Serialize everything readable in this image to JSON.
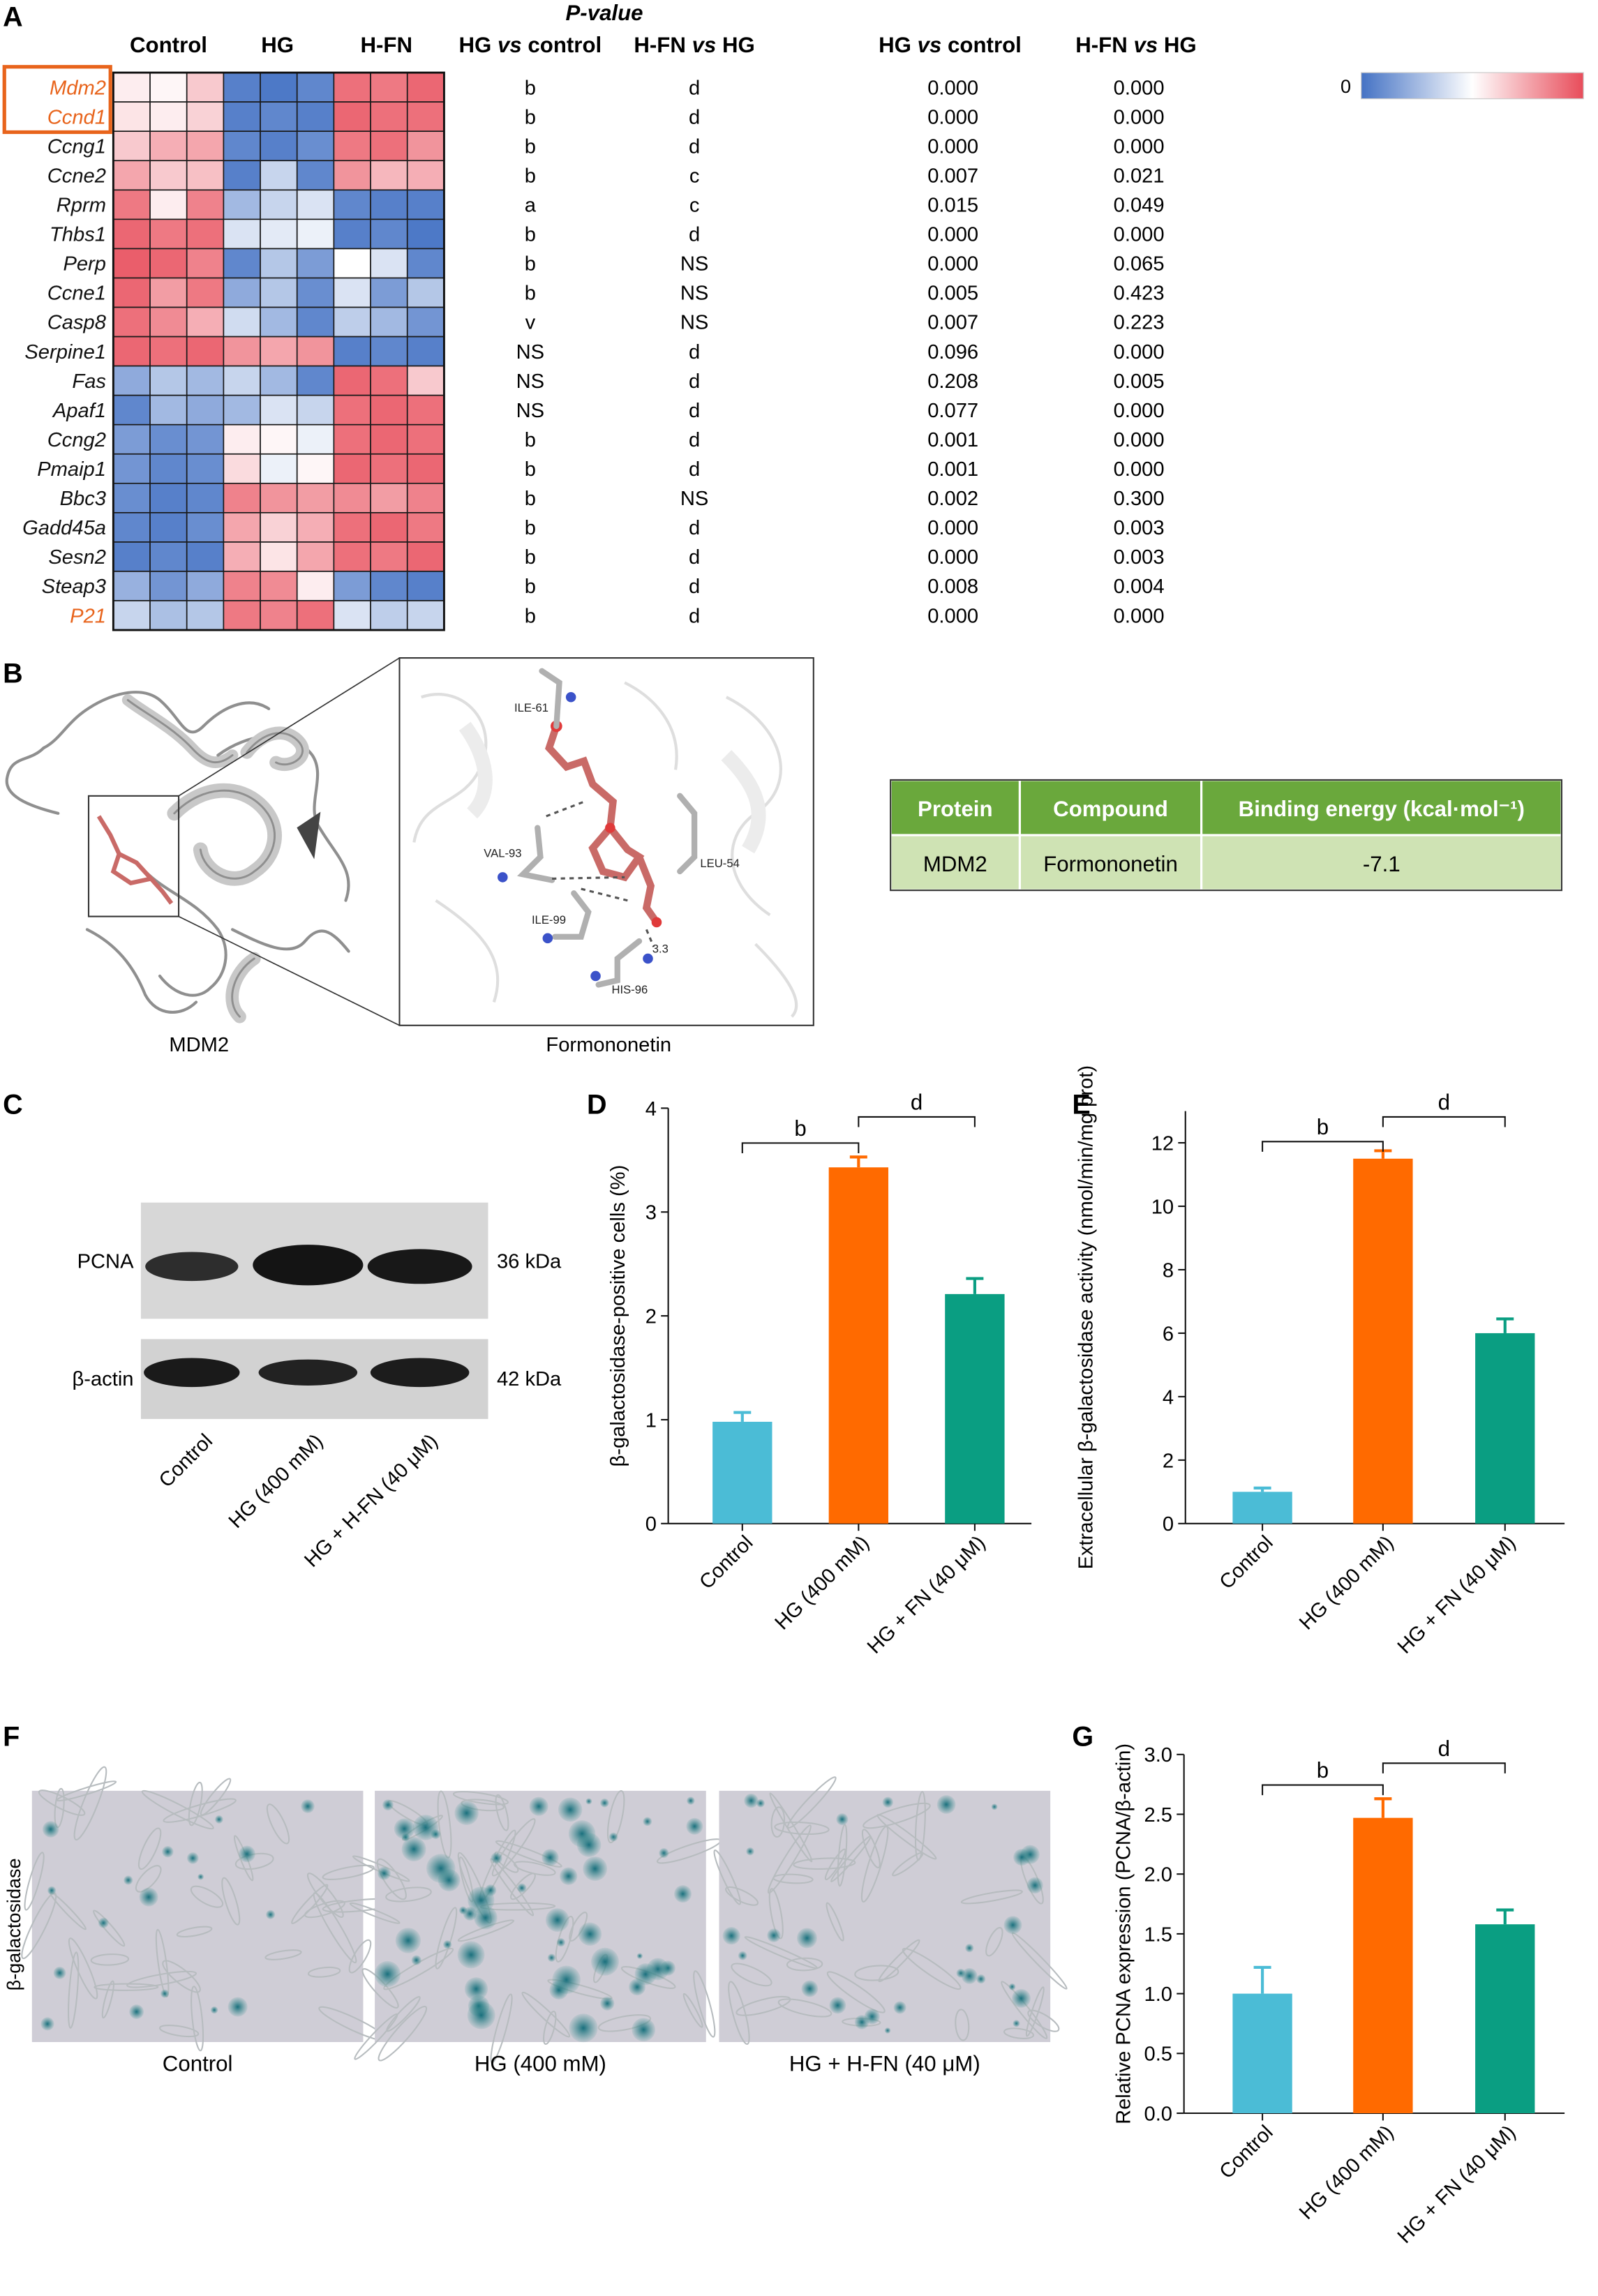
{
  "panels": {
    "a": "A",
    "b": "B",
    "c": "C",
    "d": "D",
    "e": "E",
    "f": "F",
    "g": "G"
  },
  "heatmap": {
    "pvalue_title": "P-value",
    "group_headers": [
      "Control",
      "HG",
      "H-FN"
    ],
    "letter_headers": [
      "HG vs control",
      "H-FN vs HG"
    ],
    "pvalue_headers": [
      "HG vs control",
      "H-FN vs HG"
    ],
    "scale_label": "0",
    "highlight_color": "#e8641c",
    "colors": {
      "low": "#4472c4",
      "mid": "#ffffff",
      "high": "#e84c5a"
    },
    "genes": [
      {
        "name": "Mdm2",
        "highlight": true,
        "cells": [
          0.1,
          0.05,
          0.3,
          -0.9,
          -0.95,
          -0.85,
          0.8,
          0.75,
          0.85
        ],
        "sig1": "b",
        "sig2": "d",
        "p1": "0.000",
        "p2": "0.000"
      },
      {
        "name": "Ccnd1",
        "highlight": true,
        "cells": [
          0.15,
          0.1,
          0.25,
          -0.9,
          -0.85,
          -0.9,
          0.85,
          0.8,
          0.8
        ],
        "sig1": "b",
        "sig2": "d",
        "p1": "0.000",
        "p2": "0.000"
      },
      {
        "name": "Ccng1",
        "highlight": false,
        "cells": [
          0.3,
          0.45,
          0.5,
          -0.85,
          -0.9,
          -0.8,
          0.75,
          0.8,
          0.6
        ],
        "sig1": "b",
        "sig2": "d",
        "p1": "0.000",
        "p2": "0.000"
      },
      {
        "name": "Ccne2",
        "highlight": false,
        "cells": [
          0.5,
          0.3,
          0.35,
          -0.9,
          -0.3,
          -0.85,
          0.6,
          0.4,
          0.45
        ],
        "sig1": "b",
        "sig2": "c",
        "p1": "0.007",
        "p2": "0.021"
      },
      {
        "name": "Rprm",
        "highlight": false,
        "cells": [
          0.75,
          0.1,
          0.7,
          -0.5,
          -0.3,
          -0.2,
          -0.85,
          -0.9,
          -0.9
        ],
        "sig1": "a",
        "sig2": "c",
        "p1": "0.015",
        "p2": "0.049"
      },
      {
        "name": "Thbs1",
        "highlight": false,
        "cells": [
          0.85,
          0.75,
          0.8,
          -0.2,
          -0.15,
          -0.1,
          -0.9,
          -0.85,
          -0.95
        ],
        "sig1": "b",
        "sig2": "d",
        "p1": "0.000",
        "p2": "0.000"
      },
      {
        "name": "Perp",
        "highlight": false,
        "cells": [
          0.9,
          0.85,
          0.7,
          -0.85,
          -0.4,
          -0.7,
          0.0,
          -0.2,
          -0.85
        ],
        "sig1": "b",
        "sig2": "NS",
        "p1": "0.000",
        "p2": "0.065"
      },
      {
        "name": "Ccne1",
        "highlight": false,
        "cells": [
          0.85,
          0.55,
          0.75,
          -0.6,
          -0.4,
          -0.8,
          -0.2,
          -0.7,
          -0.4
        ],
        "sig1": "b",
        "sig2": "NS",
        "p1": "0.005",
        "p2": "0.423"
      },
      {
        "name": "Casp8",
        "highlight": false,
        "cells": [
          0.8,
          0.65,
          0.45,
          -0.25,
          -0.5,
          -0.85,
          -0.35,
          -0.5,
          -0.75
        ],
        "sig1": "v",
        "sig2": "NS",
        "p1": "0.007",
        "p2": "0.223"
      },
      {
        "name": "Serpine1",
        "highlight": false,
        "cells": [
          0.85,
          0.8,
          0.85,
          0.6,
          0.5,
          0.6,
          -0.9,
          -0.85,
          -0.9
        ],
        "sig1": "NS",
        "sig2": "d",
        "p1": "0.096",
        "p2": "0.000"
      },
      {
        "name": "Fas",
        "highlight": false,
        "cells": [
          -0.6,
          -0.4,
          -0.5,
          -0.3,
          -0.5,
          -0.85,
          0.85,
          0.8,
          0.3
        ],
        "sig1": "NS",
        "sig2": "d",
        "p1": "0.208",
        "p2": "0.005"
      },
      {
        "name": "Apaf1",
        "highlight": false,
        "cells": [
          -0.85,
          -0.5,
          -0.6,
          -0.5,
          -0.2,
          -0.3,
          0.8,
          0.85,
          0.8
        ],
        "sig1": "NS",
        "sig2": "d",
        "p1": "0.077",
        "p2": "0.000"
      },
      {
        "name": "Ccng2",
        "highlight": false,
        "cells": [
          -0.7,
          -0.8,
          -0.75,
          0.1,
          0.05,
          -0.1,
          0.8,
          0.85,
          0.8
        ],
        "sig1": "b",
        "sig2": "d",
        "p1": "0.001",
        "p2": "0.000"
      },
      {
        "name": "Pmaip1",
        "highlight": false,
        "cells": [
          -0.75,
          -0.85,
          -0.8,
          0.2,
          -0.1,
          0.05,
          0.85,
          0.8,
          0.85
        ],
        "sig1": "b",
        "sig2": "d",
        "p1": "0.001",
        "p2": "0.000"
      },
      {
        "name": "Bbc3",
        "highlight": false,
        "cells": [
          -0.8,
          -0.9,
          -0.85,
          0.7,
          0.6,
          0.55,
          0.65,
          0.55,
          0.7
        ],
        "sig1": "b",
        "sig2": "NS",
        "p1": "0.002",
        "p2": "0.300"
      },
      {
        "name": "Gadd45a",
        "highlight": false,
        "cells": [
          -0.85,
          -0.9,
          -0.8,
          0.5,
          0.25,
          0.45,
          0.8,
          0.85,
          0.75
        ],
        "sig1": "b",
        "sig2": "d",
        "p1": "0.000",
        "p2": "0.003"
      },
      {
        "name": "Sesn2",
        "highlight": false,
        "cells": [
          -0.9,
          -0.85,
          -0.9,
          0.45,
          0.15,
          0.5,
          0.8,
          0.75,
          0.85
        ],
        "sig1": "b",
        "sig2": "d",
        "p1": "0.000",
        "p2": "0.003"
      },
      {
        "name": "Steap3",
        "highlight": false,
        "cells": [
          -0.55,
          -0.75,
          -0.6,
          0.7,
          0.65,
          0.1,
          -0.7,
          -0.85,
          -0.9
        ],
        "sig1": "b",
        "sig2": "d",
        "p1": "0.008",
        "p2": "0.004"
      },
      {
        "name": "P21",
        "highlight": true,
        "cells": [
          -0.3,
          -0.45,
          -0.4,
          0.75,
          0.7,
          0.8,
          -0.2,
          -0.35,
          -0.3
        ],
        "sig1": "b",
        "sig2": "d",
        "p1": "0.000",
        "p2": "0.000"
      }
    ]
  },
  "docking": {
    "protein_caption": "MDM2",
    "ligand_caption": "Formononetin",
    "residues": [
      "ILE-61",
      "VAL-93",
      "LEU-54",
      "ILE-99",
      "HIS-96",
      "3.3"
    ],
    "table": {
      "headers": [
        "Protein",
        "Compound",
        "Binding energy (kcal·mol⁻¹)"
      ],
      "row": [
        "MDM2",
        "Formononetin",
        "-7.1"
      ]
    }
  },
  "western": {
    "bands": [
      {
        "label": "PCNA",
        "size": "36 kDa"
      },
      {
        "label": "β-actin",
        "size": "42 kDa"
      }
    ],
    "lanes": [
      "Control",
      "HG (400 mM)",
      "HG + H-FN (40 μM)"
    ]
  },
  "staining": {
    "ylabel": "β-galactosidase",
    "captions": [
      "Control",
      "HG (400 mM)",
      "HG + H-FN (40 μM)"
    ]
  },
  "chart_data": [
    {
      "id": "D",
      "type": "bar",
      "categories": [
        "Control",
        "HG (400 mM)",
        "HG + FN (40 μM)"
      ],
      "values": [
        0.98,
        3.43,
        2.21
      ],
      "errors": [
        0.09,
        0.1,
        0.15
      ],
      "colors": [
        "#4bbcd6",
        "#ff6a00",
        "#0a9e82"
      ],
      "ylabel": "β-galactosidase-positive cells (%)",
      "ylim": [
        0,
        4
      ],
      "yticks": [
        0,
        1,
        2,
        3,
        4
      ],
      "brackets": [
        {
          "from": 0,
          "to": 1,
          "label": "b"
        },
        {
          "from": 1,
          "to": 2,
          "label": "d"
        }
      ]
    },
    {
      "id": "E",
      "type": "bar",
      "categories": [
        "Control",
        "HG (400 mM)",
        "HG + FN (40 μM)"
      ],
      "values": [
        1.0,
        11.5,
        6.0
      ],
      "errors": [
        0.12,
        0.25,
        0.45
      ],
      "colors": [
        "#4bbcd6",
        "#ff6a00",
        "#0a9e82"
      ],
      "ylabel": "Extracellular β-galactosidase activity (nmol/min/mg prot)",
      "ylim": [
        0,
        13
      ],
      "yticks": [
        0,
        2,
        4,
        6,
        8,
        10,
        12
      ],
      "brackets": [
        {
          "from": 0,
          "to": 1,
          "label": "b"
        },
        {
          "from": 1,
          "to": 2,
          "label": "d"
        }
      ]
    },
    {
      "id": "G",
      "type": "bar",
      "categories": [
        "Control",
        "HG (400 mM)",
        "HG + FN (40 μM)"
      ],
      "values": [
        1.0,
        2.47,
        1.58
      ],
      "errors": [
        0.22,
        0.16,
        0.12
      ],
      "colors": [
        "#4bbcd6",
        "#ff6a00",
        "#0a9e82"
      ],
      "ylabel": "Relative PCNA expression (PCNA/β-actin)",
      "ylim": [
        0,
        3.0
      ],
      "yticks": [
        "0.0",
        "0.5",
        "1.0",
        "1.5",
        "2.0",
        "2.5",
        "3.0"
      ],
      "brackets": [
        {
          "from": 0,
          "to": 1,
          "label": "b"
        },
        {
          "from": 1,
          "to": 2,
          "label": "d"
        }
      ]
    }
  ]
}
